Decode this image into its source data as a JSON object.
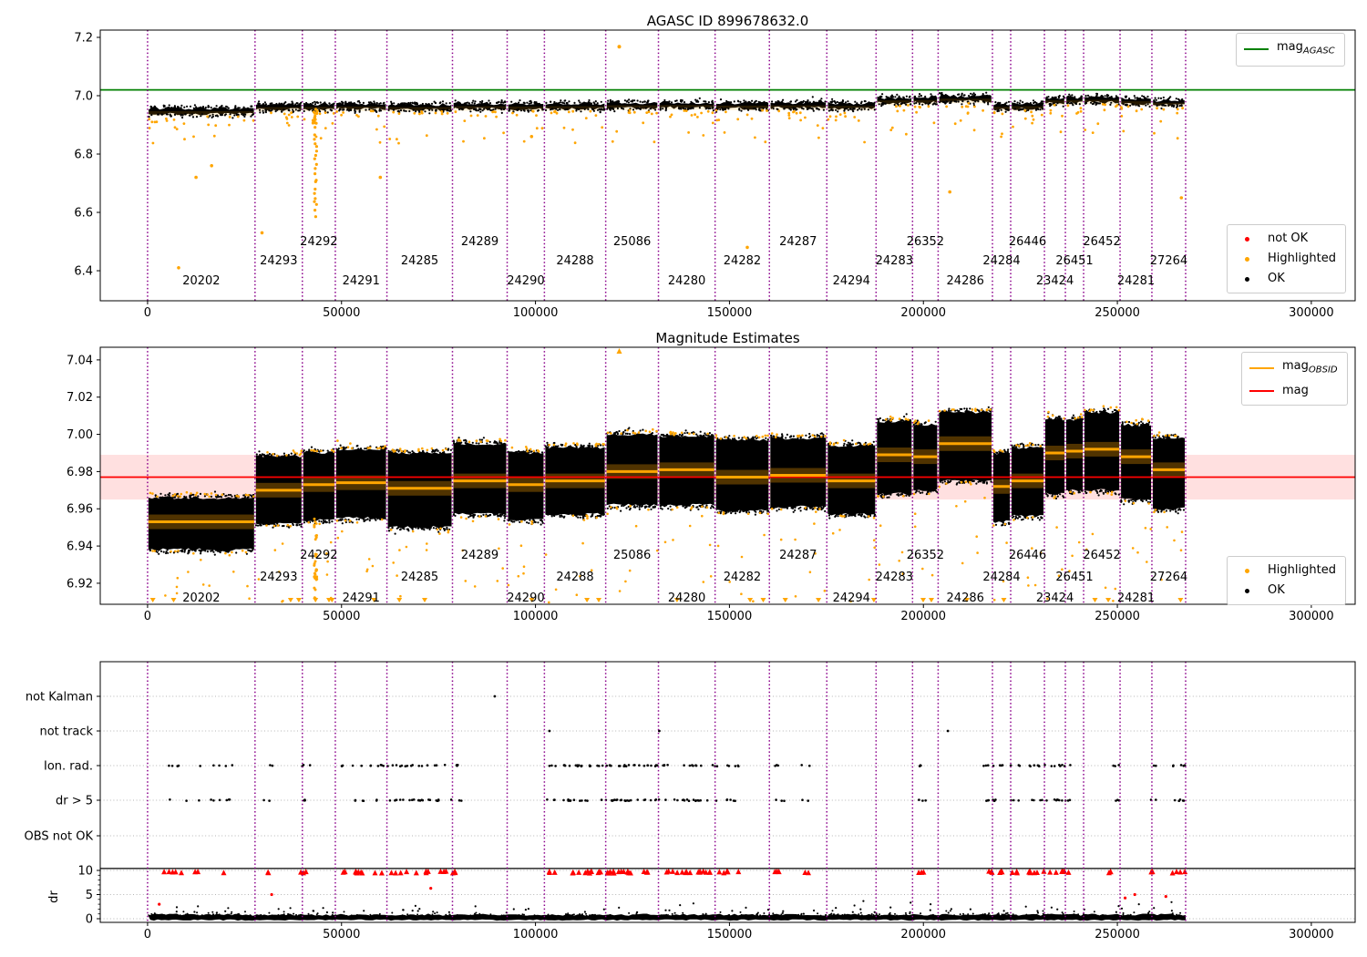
{
  "titles": {
    "top": "AGASC ID 899678632.0",
    "middle": "Magnitude Estimates"
  },
  "legends": {
    "mag_agasc": {
      "main": "mag",
      "sub": "AGASC"
    },
    "panel1_points": {
      "not_ok": "not OK",
      "highlighted": "Highlighted",
      "ok": "OK"
    },
    "mag_obsid": {
      "main": "mag",
      "sub": "OBSID"
    },
    "mag": "mag",
    "panel2_points": {
      "highlighted": "Highlighted",
      "ok": "OK"
    }
  },
  "colors": {
    "green_line": "#008000",
    "red_line": "#ff0000",
    "orange": "#ffa500",
    "black": "#000000",
    "purple_vline": "#8b008b",
    "pink_band": "rgba(255,0,0,0.12)",
    "grid_dotted": "#b5b5b5",
    "cloud_glow": "#c97f00"
  },
  "chart_data": {
    "type": "scatter",
    "x": {
      "lim": [
        -12200,
        311300
      ],
      "ticks": [
        0,
        50000,
        100000,
        150000,
        200000,
        250000,
        300000
      ],
      "tick_labels": [
        "0",
        "50000",
        "100000",
        "150000",
        "200000",
        "250000",
        "300000"
      ]
    },
    "obsids": [
      {
        "obsid": "20202",
        "t0": 0,
        "t1": 27700,
        "tier": "low",
        "all_center": 6.947,
        "all_half": 0.01,
        "est_lo": 6.938,
        "est_hi": 6.966,
        "mag_obsid": 6.953
      },
      {
        "obsid": "24293",
        "t0": 27700,
        "t1": 39900,
        "tier": "mid",
        "all_center": 6.961,
        "all_half": 0.009,
        "est_lo": 6.952,
        "est_hi": 6.988,
        "mag_obsid": 6.97
      },
      {
        "obsid": "24292",
        "t0": 39900,
        "t1": 48400,
        "tier": "top",
        "all_center": 6.962,
        "all_half": 0.009,
        "est_lo": 6.954,
        "est_hi": 6.99,
        "mag_obsid": 6.973
      },
      {
        "obsid": "24291",
        "t0": 48400,
        "t1": 61700,
        "tier": "low",
        "all_center": 6.963,
        "all_half": 0.009,
        "est_lo": 6.955,
        "est_hi": 6.992,
        "mag_obsid": 6.974
      },
      {
        "obsid": "24285",
        "t0": 61700,
        "t1": 78600,
        "tier": "mid",
        "all_center": 6.961,
        "all_half": 0.009,
        "est_lo": 6.95,
        "est_hi": 6.99,
        "mag_obsid": 6.971
      },
      {
        "obsid": "24289",
        "t0": 78600,
        "t1": 92700,
        "tier": "top",
        "all_center": 6.964,
        "all_half": 0.009,
        "est_lo": 6.957,
        "est_hi": 6.995,
        "mag_obsid": 6.975
      },
      {
        "obsid": "24290",
        "t0": 92700,
        "t1": 102300,
        "tier": "low",
        "all_center": 6.963,
        "all_half": 0.009,
        "est_lo": 6.954,
        "est_hi": 6.99,
        "mag_obsid": 6.973
      },
      {
        "obsid": "24288",
        "t0": 102300,
        "t1": 118100,
        "tier": "mid",
        "all_center": 6.964,
        "all_half": 0.009,
        "est_lo": 6.957,
        "est_hi": 6.993,
        "mag_obsid": 6.975
      },
      {
        "obsid": "25086",
        "t0": 118100,
        "t1": 131700,
        "tier": "top",
        "all_center": 6.967,
        "all_half": 0.009,
        "est_lo": 6.962,
        "est_hi": 7.0,
        "mag_obsid": 6.98
      },
      {
        "obsid": "24280",
        "t0": 131700,
        "t1": 146300,
        "tier": "low",
        "all_center": 6.968,
        "all_half": 0.009,
        "est_lo": 6.962,
        "est_hi": 6.999,
        "mag_obsid": 6.981
      },
      {
        "obsid": "24282",
        "t0": 146300,
        "t1": 160300,
        "tier": "mid",
        "all_center": 6.966,
        "all_half": 0.009,
        "est_lo": 6.959,
        "est_hi": 6.997,
        "mag_obsid": 6.977
      },
      {
        "obsid": "24287",
        "t0": 160300,
        "t1": 175100,
        "tier": "top",
        "all_center": 6.967,
        "all_half": 0.009,
        "est_lo": 6.961,
        "est_hi": 6.998,
        "mag_obsid": 6.978
      },
      {
        "obsid": "24294",
        "t0": 175100,
        "t1": 187800,
        "tier": "low",
        "all_center": 6.965,
        "all_half": 0.009,
        "est_lo": 6.957,
        "est_hi": 6.994,
        "mag_obsid": 6.975
      },
      {
        "obsid": "24283",
        "t0": 187800,
        "t1": 197200,
        "tier": "mid",
        "all_center": 6.984,
        "all_half": 0.009,
        "est_lo": 6.968,
        "est_hi": 7.007,
        "mag_obsid": 6.989
      },
      {
        "obsid": "26352",
        "t0": 197200,
        "t1": 203800,
        "tier": "top",
        "all_center": 6.985,
        "all_half": 0.009,
        "est_lo": 6.97,
        "est_hi": 7.005,
        "mag_obsid": 6.988
      },
      {
        "obsid": "24286",
        "t0": 203800,
        "t1": 217800,
        "tier": "low",
        "all_center": 6.99,
        "all_half": 0.009,
        "est_lo": 6.975,
        "est_hi": 7.012,
        "mag_obsid": 6.995
      },
      {
        "obsid": "24284",
        "t0": 217800,
        "t1": 222500,
        "tier": "mid",
        "all_center": 6.962,
        "all_half": 0.009,
        "est_lo": 6.953,
        "est_hi": 6.99,
        "mag_obsid": 6.972
      },
      {
        "obsid": "26446",
        "t0": 222500,
        "t1": 231200,
        "tier": "top",
        "all_center": 6.964,
        "all_half": 0.009,
        "est_lo": 6.956,
        "est_hi": 6.993,
        "mag_obsid": 6.975
      },
      {
        "obsid": "23424",
        "t0": 231200,
        "t1": 236600,
        "tier": "low",
        "all_center": 6.984,
        "all_half": 0.009,
        "est_lo": 6.968,
        "est_hi": 7.008,
        "mag_obsid": 6.99
      },
      {
        "obsid": "26451",
        "t0": 236600,
        "t1": 241300,
        "tier": "mid",
        "all_center": 6.985,
        "all_half": 0.009,
        "est_lo": 6.97,
        "est_hi": 7.008,
        "mag_obsid": 6.991
      },
      {
        "obsid": "26452",
        "t0": 241300,
        "t1": 250700,
        "tier": "top",
        "all_center": 6.986,
        "all_half": 0.009,
        "est_lo": 6.97,
        "est_hi": 7.012,
        "mag_obsid": 6.992
      },
      {
        "obsid": "24281",
        "t0": 250700,
        "t1": 258900,
        "tier": "low",
        "all_center": 6.981,
        "all_half": 0.009,
        "est_lo": 6.965,
        "est_hi": 7.005,
        "mag_obsid": 6.988
      },
      {
        "obsid": "27264",
        "t0": 258900,
        "t1": 267600,
        "tier": "mid",
        "all_center": 6.976,
        "all_half": 0.008,
        "est_lo": 6.96,
        "est_hi": 6.998,
        "mag_obsid": 6.981
      }
    ],
    "panels": [
      {
        "name": "mag-all",
        "title": "AGASC ID 899678632.0",
        "ylim": [
          6.297,
          7.225
        ],
        "yticks": [
          6.4,
          6.6,
          6.8,
          7.0,
          7.2
        ],
        "ytick_labels": [
          "6.4",
          "6.6",
          "6.8",
          "7.0",
          "7.2"
        ],
        "mag_agasc": 7.02,
        "outliers": [
          [
            8000,
            6.41
          ],
          [
            12500,
            6.72
          ],
          [
            16500,
            6.76
          ],
          [
            29500,
            6.53
          ],
          [
            60000,
            6.72
          ],
          [
            99000,
            6.86
          ],
          [
            154600,
            6.48
          ],
          [
            206800,
            6.67
          ],
          [
            266500,
            6.65
          ]
        ],
        "high_point": [
          121600,
          7.168
        ],
        "streak": {
          "t": 43300,
          "mag_top": 6.95,
          "mag_bottom": 6.59,
          "n": 24
        }
      },
      {
        "name": "mag-est",
        "title": "Magnitude Estimates",
        "ylim": [
          6.9087,
          7.0468
        ],
        "yticks": [
          6.92,
          6.94,
          6.96,
          6.98,
          7.0,
          7.02,
          7.04
        ],
        "ytick_labels": [
          "6.92",
          "6.94",
          "6.96",
          "6.98",
          "7.00",
          "7.02",
          "7.04"
        ],
        "mag": 6.977,
        "mag_band": [
          6.965,
          6.989
        ],
        "clip_top_markers": [
          121600
        ],
        "streak": {
          "t": 43300,
          "n": 30
        }
      },
      {
        "name": "flags",
        "rows": [
          "not Kalman",
          "not track",
          "Ion. rad.",
          "dr > 5",
          "OBS not OK"
        ],
        "dr_ticks": [
          0,
          5,
          10
        ],
        "dr_tick_labels": [
          "0",
          "5",
          "10"
        ],
        "dr_axis_label": "dr",
        "dr_limit_line": 10.4,
        "dr_cap_value": 9.7,
        "clusters": [
          [
            3000,
            23000,
            9
          ],
          [
            29800,
            32500,
            2
          ],
          [
            39500,
            42000,
            3
          ],
          [
            50000,
            77500,
            26
          ],
          [
            78000,
            81000,
            3
          ],
          [
            102800,
            105500,
            3
          ],
          [
            107000,
            126500,
            28
          ],
          [
            126600,
            147500,
            22
          ],
          [
            148500,
            152500,
            5
          ],
          [
            161500,
            164200,
            3
          ],
          [
            168500,
            171200,
            2
          ],
          [
            198800,
            200600,
            3
          ],
          [
            215500,
            220500,
            7
          ],
          [
            222500,
            225200,
            3
          ],
          [
            227000,
            238200,
            14
          ],
          [
            247500,
            250500,
            3
          ],
          [
            258500,
            260000,
            2
          ],
          [
            264000,
            267500,
            5
          ]
        ],
        "not_kalman_t": [
          89500
        ],
        "not_track_t": [
          103600,
          131900,
          206300
        ],
        "red_isolated": [
          [
            3000,
            3.0
          ],
          [
            32000,
            5.0
          ],
          [
            73000,
            6.3
          ],
          [
            252000,
            4.3
          ],
          [
            254500,
            5.0
          ],
          [
            262500,
            4.6
          ]
        ]
      }
    ]
  }
}
